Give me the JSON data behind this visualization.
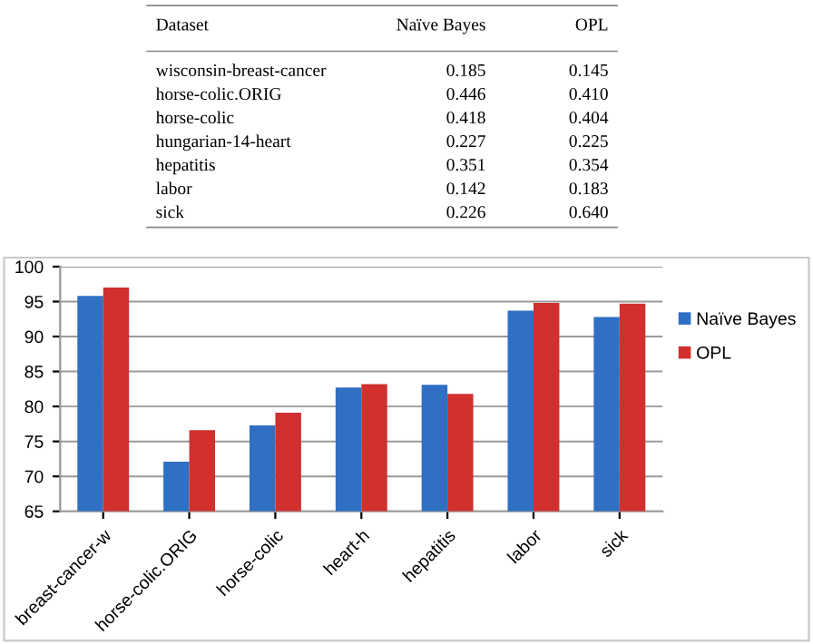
{
  "chart_data": [
    {
      "type": "other",
      "annotations": [
        "Dataset",
        "Naïve Bayes",
        "OPL",
        "wisconsin-breast-cancer",
        "0.185",
        "0.145",
        "horse-colic.ORIG",
        "0.446",
        "0.410",
        "horse-colic",
        "0.418",
        "0.404",
        "hungarian-14-heart",
        "0.227",
        "0.225",
        "hepatitis",
        "0.351",
        "0.354",
        "labor",
        "0.142",
        "0.183",
        "sick",
        "0.226",
        "0.640"
      ]
    },
    {
      "type": "bar",
      "categories": [
        "breast-cancer-w",
        "horse-colic.ORIG",
        "horse-colic",
        "heart-h",
        "hepatitis",
        "labor",
        "sick"
      ],
      "series": [
        {
          "name": "Naïve Bayes",
          "color": "#2f6fc4",
          "values": [
            95.8,
            72.1,
            77.3,
            82.7,
            83.1,
            93.7,
            92.8
          ]
        },
        {
          "name": "OPL",
          "color": "#d0302e",
          "values": [
            97.0,
            76.6,
            79.1,
            83.2,
            81.8,
            94.8,
            94.7
          ]
        }
      ],
      "ylim": [
        65,
        100
      ],
      "yticks": [
        65,
        70,
        75,
        80,
        85,
        90,
        95,
        100
      ],
      "grid": "y",
      "legend": "right"
    }
  ]
}
